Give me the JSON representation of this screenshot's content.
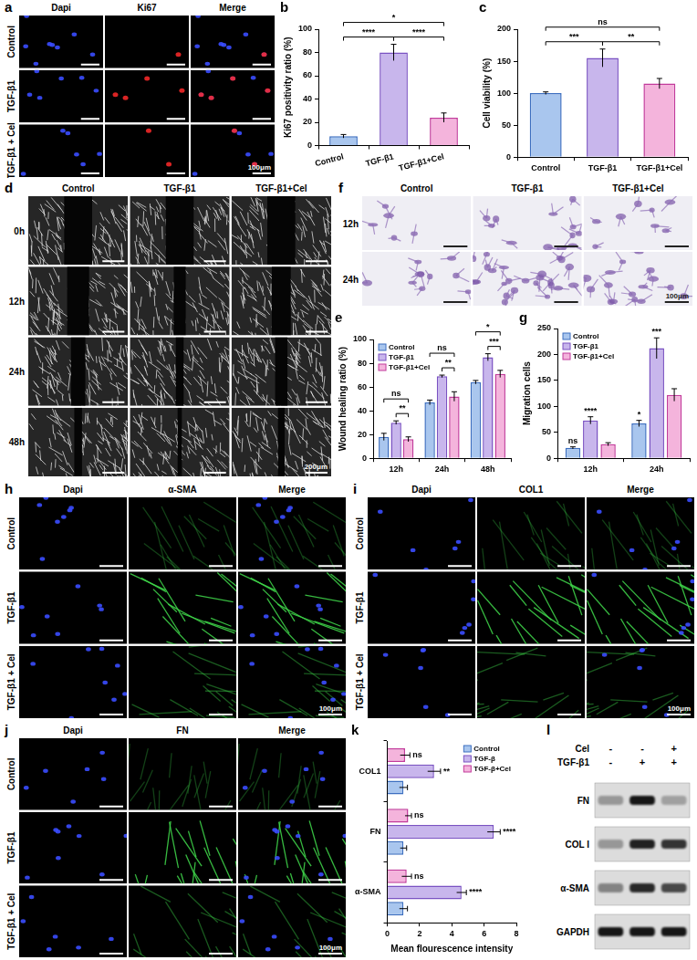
{
  "image_panels": [
    {
      "panel": "a",
      "type": "fluorescence",
      "marker": "dots",
      "color": "#ff2a2a",
      "columns": [
        "Dapi",
        "Ki67",
        "Merge"
      ],
      "rows": [
        "Control",
        "TGF-β1",
        "TGF-β1 + Cel"
      ],
      "scale_bar": "100μm"
    },
    {
      "panel": "d",
      "type": "wound",
      "columns": [
        "Control",
        "TGF-β1",
        "TGF-β1+Cel"
      ],
      "rows": [
        "0h",
        "12h",
        "24h",
        "48h"
      ],
      "scale_bar": "200μm"
    },
    {
      "panel": "f",
      "type": "transwell",
      "columns": [
        "Control",
        "TGF-β1",
        "TGF-β1+Cel"
      ],
      "rows": [
        "12h",
        "24h"
      ],
      "scale_bar": "100μm"
    },
    {
      "panel": "h",
      "type": "fluorescence",
      "marker": "fibers",
      "color": "#3fd64a",
      "columns": [
        "Dapi",
        "α-SMA",
        "Merge"
      ],
      "rows": [
        "Control",
        "TGF-β1",
        "TGF-β1 + Cel"
      ],
      "scale_bar": "100μm"
    },
    {
      "panel": "i",
      "type": "fluorescence",
      "marker": "fibers",
      "color": "#3fd64a",
      "columns": [
        "Dapi",
        "COL1",
        "Merge"
      ],
      "rows": [
        "Control",
        "TGF-β1",
        "TGF-β1 + Cel"
      ],
      "scale_bar": "100μm"
    },
    {
      "panel": "j",
      "type": "fluorescence",
      "marker": "fibers",
      "color": "#3fd64a",
      "columns": [
        "Dapi",
        "FN",
        "Merge"
      ],
      "rows": [
        "Control",
        "TGF-β1",
        "TGF-β1 + Cel"
      ],
      "scale_bar": "100μm"
    }
  ],
  "chart_data": [
    {
      "panel": "b",
      "type": "bar",
      "categories": [
        "Control",
        "TGF-β1",
        "TGF-β1+Cel"
      ],
      "values": [
        8,
        80,
        24
      ],
      "errors": [
        1.5,
        7,
        4
      ],
      "colors": [
        "#a9c6ee",
        "#c8b6ec",
        "#f4b4dc"
      ],
      "ylabel": "Ki67 positivity ratio (%)",
      "ylim": [
        0,
        100
      ],
      "yticks": [
        0,
        20,
        40,
        60,
        80,
        100
      ],
      "grid": false,
      "significance": [
        {
          "between": [
            "Control",
            "TGF-β1"
          ],
          "label": "****"
        },
        {
          "between": [
            "TGF-β1",
            "TGF-β1+Cel"
          ],
          "label": "****"
        },
        {
          "between": [
            "Control",
            "TGF-β1+Cel"
          ],
          "label": "*"
        }
      ]
    },
    {
      "panel": "c",
      "type": "bar",
      "categories": [
        "Control",
        "TGF-β1",
        "TGF-β1+Cel"
      ],
      "values": [
        100,
        155,
        115
      ],
      "errors": [
        2,
        14,
        8
      ],
      "colors": [
        "#a9c6ee",
        "#c8b6ec",
        "#f4b4dc"
      ],
      "ylabel": "Cell viability (%)",
      "ylim": [
        0,
        200
      ],
      "yticks": [
        0,
        50,
        100,
        150,
        200
      ],
      "grid": false,
      "significance": [
        {
          "between": [
            "Control",
            "TGF-β1"
          ],
          "label": "***"
        },
        {
          "between": [
            "TGF-β1",
            "TGF-β1+Cel"
          ],
          "label": "**"
        },
        {
          "between": [
            "Control",
            "TGF-β1+Cel"
          ],
          "label": "ns"
        }
      ]
    },
    {
      "panel": "e",
      "type": "bar",
      "categories": [
        "12h",
        "24h",
        "48h"
      ],
      "series": [
        {
          "name": "Control",
          "color": "#a9c6ee",
          "values": [
            18,
            47,
            64
          ],
          "errors": [
            3,
            2,
            1.5
          ]
        },
        {
          "name": "TGF-β1",
          "color": "#c8b6ec",
          "values": [
            30,
            69,
            85
          ],
          "errors": [
            1.5,
            1,
            3
          ]
        },
        {
          "name": "TGF-β1+Cel",
          "color": "#f4b4dc",
          "values": [
            16,
            52,
            71
          ],
          "errors": [
            2,
            4,
            3
          ]
        }
      ],
      "ylabel": "Wound healing ratio (%)",
      "ylim": [
        0,
        100
      ],
      "yticks": [
        0,
        20,
        40,
        60,
        80,
        100
      ],
      "grid": false,
      "legend": "upper left",
      "significance": [
        {
          "category": "12h",
          "between": [
            "TGF-β1",
            "TGF-β1+Cel"
          ],
          "label": "**"
        },
        {
          "category": "12h",
          "between": [
            "Control",
            "TGF-β1+Cel"
          ],
          "label": "ns"
        },
        {
          "category": "24h",
          "between": [
            "TGF-β1",
            "TGF-β1+Cel"
          ],
          "label": "**"
        },
        {
          "category": "24h",
          "between": [
            "Control",
            "TGF-β1+Cel"
          ],
          "label": "ns"
        },
        {
          "category": "48h",
          "between": [
            "TGF-β1",
            "TGF-β1+Cel"
          ],
          "label": "***"
        },
        {
          "category": "48h",
          "between": [
            "Control",
            "TGF-β1+Cel"
          ],
          "label": "*"
        }
      ]
    },
    {
      "panel": "g",
      "type": "bar",
      "categories": [
        "12h",
        "24h"
      ],
      "series": [
        {
          "name": "Control",
          "color": "#a9c6ee",
          "values": [
            20,
            67
          ],
          "errors": [
            2,
            6
          ]
        },
        {
          "name": "TGF-β1",
          "color": "#c8b6ec",
          "values": [
            73,
            212
          ],
          "errors": [
            7,
            20
          ]
        },
        {
          "name": "TGF-β1+Cel",
          "color": "#f4b4dc",
          "values": [
            27,
            122
          ],
          "errors": [
            3,
            12
          ]
        }
      ],
      "ylabel": "Migration cells",
      "ylim": [
        0,
        250
      ],
      "yticks": [
        0,
        50,
        100,
        150,
        200,
        250
      ],
      "grid": false,
      "legend": "upper left",
      "annotations": [
        {
          "category": "12h",
          "series": "Control",
          "label": "ns"
        },
        {
          "category": "24h",
          "series": "Control",
          "label": "*"
        },
        {
          "category": "12h",
          "series": "TGF-β1",
          "label": "****"
        },
        {
          "category": "24h",
          "series": "TGF-β1",
          "label": "***"
        }
      ]
    },
    {
      "panel": "k",
      "type": "bar",
      "orientation": "horizontal",
      "categories": [
        "COL1",
        "FN",
        "α-SMA"
      ],
      "series": [
        {
          "name": "Control",
          "color": "#a9c6ee",
          "values": [
            1,
            1,
            1
          ],
          "errors": [
            0.25,
            0.2,
            0.25
          ]
        },
        {
          "name": "TGF-β",
          "color": "#c8b6ec",
          "values": [
            2.9,
            6.6,
            4.6
          ],
          "errors": [
            0.4,
            0.4,
            0.3
          ]
        },
        {
          "name": "TGF-β+Cel",
          "color": "#f4b4dc",
          "values": [
            1.1,
            1.3,
            1.2
          ],
          "errors": [
            0.3,
            0.2,
            0.3
          ]
        }
      ],
      "xlabel": "Mean flourescence intensity",
      "xlim": [
        0,
        8
      ],
      "xticks": [
        0,
        2,
        4,
        6,
        8
      ],
      "grid": false,
      "legend": "upper right",
      "annotations": [
        {
          "category": "COL1",
          "series": "TGF-β",
          "label": "**"
        },
        {
          "category": "COL1",
          "series": "TGF-β+Cel",
          "label": "ns"
        },
        {
          "category": "FN",
          "series": "TGF-β",
          "label": "****"
        },
        {
          "category": "FN",
          "series": "TGF-β+Cel",
          "label": "ns"
        },
        {
          "category": "α-SMA",
          "series": "TGF-β",
          "label": "****"
        },
        {
          "category": "α-SMA",
          "series": "TGF-β+Cel",
          "label": "ns"
        }
      ]
    }
  ],
  "western_blot": {
    "panel": "l",
    "conditions": [
      {
        "label": "Cel",
        "signs": [
          "-",
          "-",
          "+"
        ]
      },
      {
        "label": "TGF-β1",
        "signs": [
          "-",
          "+",
          "+"
        ]
      }
    ],
    "bands": [
      {
        "label": "FN",
        "intensity": [
          0.35,
          1,
          0.3
        ]
      },
      {
        "label": "COL I",
        "intensity": [
          0.35,
          0.95,
          0.85
        ]
      },
      {
        "label": "α-SMA",
        "intensity": [
          0.45,
          0.9,
          0.75
        ]
      },
      {
        "label": "GAPDH",
        "intensity": [
          1,
          1,
          1
        ]
      }
    ]
  }
}
